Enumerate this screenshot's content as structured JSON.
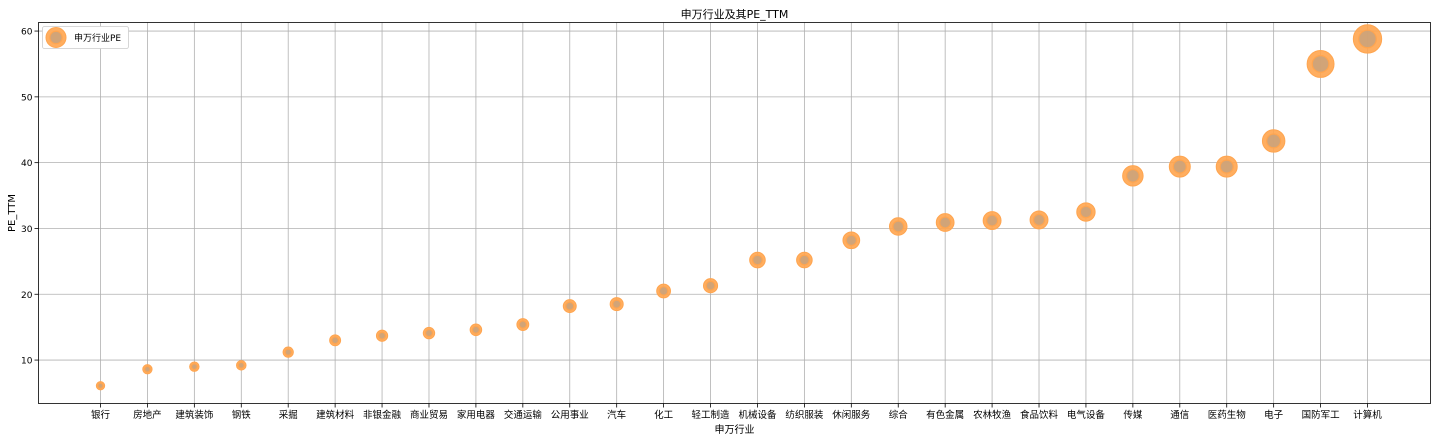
{
  "chart_data": {
    "type": "scatter",
    "title": "申万行业及其PE_TTM",
    "xlabel": "申万行业",
    "ylabel": "PE_TTM",
    "ylim": [
      3.4,
      61.3
    ],
    "yticks": [
      10,
      20,
      30,
      40,
      50,
      60
    ],
    "grid": true,
    "legend_position": "upper-left",
    "categories": [
      "银行",
      "房地产",
      "建筑装饰",
      "钢铁",
      "采掘",
      "建筑材料",
      "非银金融",
      "商业贸易",
      "家用电器",
      "交通运输",
      "公用事业",
      "汽车",
      "化工",
      "轻工制造",
      "机械设备",
      "纺织服装",
      "休闲服务",
      "综合",
      "有色金属",
      "农林牧渔",
      "食品饮料",
      "电气设备",
      "传媒",
      "通信",
      "医药生物",
      "电子",
      "国防军工",
      "计算机"
    ],
    "series": [
      {
        "name": "申万行业PE",
        "color": "#ffa54f",
        "values": [
          6.1,
          8.6,
          9.0,
          9.2,
          11.2,
          13.0,
          13.7,
          14.1,
          14.6,
          15.4,
          18.2,
          18.5,
          20.5,
          21.3,
          25.2,
          25.2,
          28.2,
          30.3,
          30.9,
          31.2,
          31.3,
          32.5,
          38.0,
          39.4,
          39.4,
          43.3,
          55.0,
          58.8
        ]
      }
    ]
  }
}
